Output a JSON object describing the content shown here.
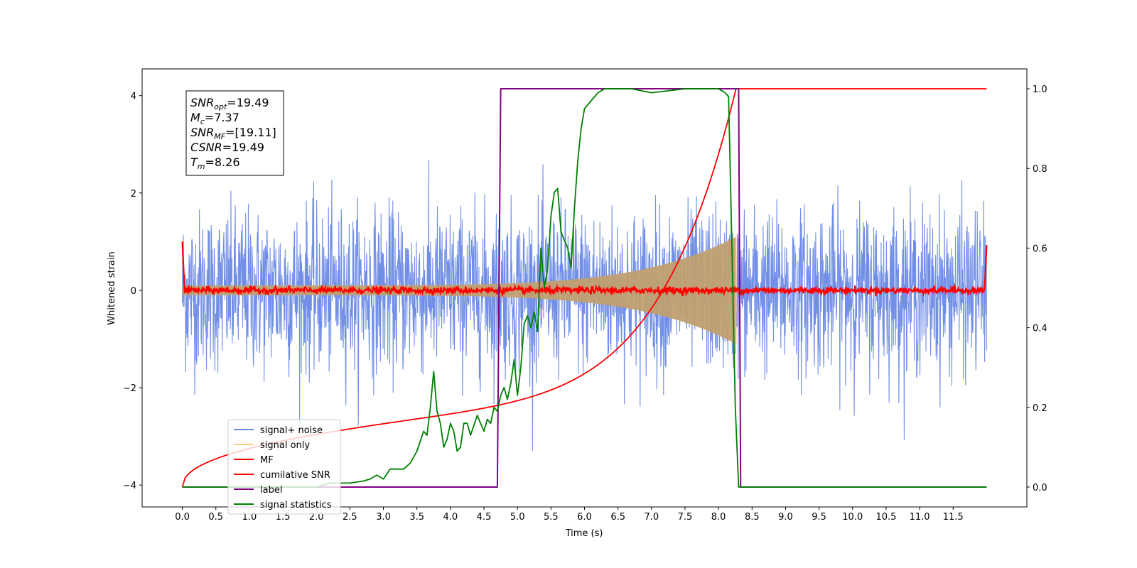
{
  "chart_data": {
    "type": "line",
    "xlabel": "Time (s)",
    "ylabel": "Whitened strain",
    "xlim": [
      -0.6,
      12.6
    ],
    "ylim": [
      -4.45,
      4.55
    ],
    "y2lim": [
      -0.05,
      1.05
    ],
    "xticks": [
      "0.0",
      "0.5",
      "1.0",
      "1.5",
      "2.0",
      "2.5",
      "3.0",
      "3.5",
      "4.0",
      "4.5",
      "5.0",
      "5.5",
      "6.0",
      "6.5",
      "7.0",
      "7.5",
      "8.0",
      "8.5",
      "9.0",
      "9.5",
      "10.0",
      "10.5",
      "11.0",
      "11.5"
    ],
    "yticks": [
      "−4",
      "−2",
      "0",
      "2",
      "4"
    ],
    "y2ticks": [
      "0.0",
      "0.2",
      "0.4",
      "0.6",
      "0.8",
      "1.0"
    ],
    "legend_position": "lower-left",
    "annotations": [
      {
        "sym": "SNR",
        "sub": "opt",
        "value": "=19.49"
      },
      {
        "sym": "M",
        "sub": "c",
        "value": "=7.37"
      },
      {
        "sym": "SNR",
        "sub": "MF",
        "value": "=[19.11]"
      },
      {
        "sym": "CSNR",
        "sub": "",
        "value": "=19.49"
      },
      {
        "sym": "T",
        "sub": "m",
        "value": "=8.26"
      }
    ],
    "series": [
      {
        "name": "signal+ noise",
        "color": "#6a89e6",
        "axis": "left",
        "description": "white noise, std ~0.8, spanning 0 to 12 s"
      },
      {
        "name": "signal only",
        "color": "#ffcc80",
        "axis": "left",
        "description": "chirp whose envelope grows from ~0.1 to ~1.1 until merger at 8.26 s"
      },
      {
        "name": "MF",
        "color": "#ff0000",
        "axis": "left",
        "description": "matched filter output near 0 with spikes at the edges",
        "x": [
          0.0,
          0.02,
          0.1,
          11.9,
          11.98,
          12.0
        ],
        "y": [
          1.0,
          0.2,
          0.0,
          0.0,
          0.2,
          0.95
        ]
      },
      {
        "name": "cumilative SNR",
        "color": "#ff0000",
        "axis": "right",
        "x": [
          0.0,
          0.1,
          0.5,
          1.0,
          2.0,
          3.0,
          4.0,
          5.0,
          5.5,
          6.0,
          6.5,
          7.0,
          7.5,
          7.8,
          8.0,
          8.1,
          8.2,
          8.26,
          12.0
        ],
        "y": [
          0.0,
          0.02,
          0.06,
          0.09,
          0.13,
          0.17,
          0.21,
          0.25,
          0.28,
          0.31,
          0.36,
          0.42,
          0.52,
          0.62,
          0.72,
          0.8,
          0.9,
          1.0,
          1.0
        ]
      },
      {
        "name": "label",
        "color": "#800080",
        "axis": "right",
        "x": [
          0.0,
          4.7,
          4.75,
          8.3,
          8.33,
          12.0
        ],
        "y": [
          0.0,
          0.0,
          1.0,
          1.0,
          0.0,
          0.0
        ]
      },
      {
        "name": "signal statistics",
        "color": "#008000",
        "axis": "right",
        "x": [
          0.0,
          1.0,
          1.5,
          2.0,
          2.2,
          2.5,
          2.7,
          2.8,
          2.9,
          3.0,
          3.1,
          3.3,
          3.4,
          3.5,
          3.6,
          3.65,
          3.7,
          3.75,
          3.8,
          3.85,
          3.9,
          3.95,
          4.0,
          4.05,
          4.1,
          4.15,
          4.2,
          4.25,
          4.3,
          4.4,
          4.5,
          4.55,
          4.6,
          4.65,
          4.7,
          4.75,
          4.8,
          4.85,
          4.9,
          4.95,
          5.0,
          5.05,
          5.1,
          5.15,
          5.2,
          5.25,
          5.3,
          5.35,
          5.4,
          5.45,
          5.5,
          5.55,
          5.6,
          5.65,
          5.7,
          5.75,
          5.8,
          5.85,
          5.9,
          5.95,
          6.0,
          6.1,
          6.2,
          6.3,
          6.35,
          6.4,
          6.45,
          6.5,
          6.55,
          6.6,
          6.7,
          7.0,
          7.5,
          8.0,
          8.1,
          8.15,
          8.2,
          8.25,
          8.3,
          8.35,
          12.0
        ],
        "y": [
          0.0,
          0.0,
          0.0,
          0.0,
          0.01,
          0.01,
          0.015,
          0.02,
          0.03,
          0.02,
          0.045,
          0.045,
          0.06,
          0.09,
          0.14,
          0.13,
          0.2,
          0.29,
          0.19,
          0.16,
          0.1,
          0.12,
          0.16,
          0.14,
          0.09,
          0.1,
          0.16,
          0.16,
          0.13,
          0.18,
          0.14,
          0.17,
          0.16,
          0.2,
          0.19,
          0.23,
          0.25,
          0.22,
          0.26,
          0.32,
          0.23,
          0.3,
          0.41,
          0.43,
          0.4,
          0.44,
          0.39,
          0.6,
          0.5,
          0.55,
          0.68,
          0.74,
          0.75,
          0.64,
          0.62,
          0.6,
          0.55,
          0.7,
          0.82,
          0.9,
          0.95,
          0.97,
          0.99,
          1.0,
          1.0,
          1.0,
          1.0,
          1.0,
          1.0,
          1.0,
          1.0,
          0.99,
          1.0,
          1.0,
          0.99,
          0.98,
          0.6,
          0.2,
          0.0,
          0.0,
          0.0
        ]
      }
    ]
  }
}
